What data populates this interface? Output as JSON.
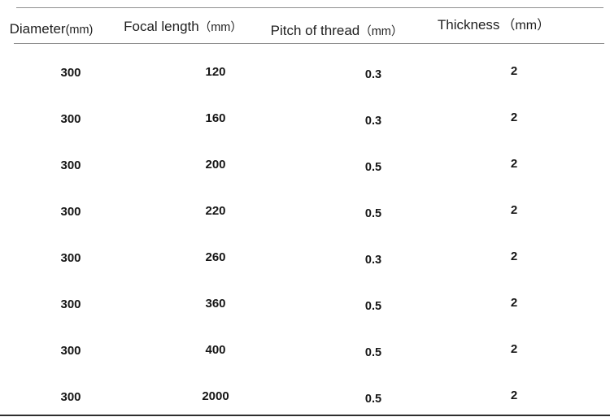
{
  "chart_data": {
    "type": "table",
    "columns": [
      {
        "label": "Diameter",
        "unit": "(mm)"
      },
      {
        "label": "Focal length",
        "unit": "（mm）"
      },
      {
        "label": "Pitch of thread",
        "unit": "（mm）"
      },
      {
        "label": "Thickness",
        "unit": "（mm）"
      }
    ],
    "rows": [
      {
        "diameter": "300",
        "focal_length": "120",
        "pitch_of_thread": "0.3",
        "thickness": "2"
      },
      {
        "diameter": "300",
        "focal_length": "160",
        "pitch_of_thread": "0.3",
        "thickness": "2"
      },
      {
        "diameter": "300",
        "focal_length": "200",
        "pitch_of_thread": "0.5",
        "thickness": "2"
      },
      {
        "diameter": "300",
        "focal_length": "220",
        "pitch_of_thread": "0.5",
        "thickness": "2"
      },
      {
        "diameter": "300",
        "focal_length": "260",
        "pitch_of_thread": "0.3",
        "thickness": "2"
      },
      {
        "diameter": "300",
        "focal_length": "360",
        "pitch_of_thread": "0.5",
        "thickness": "2"
      },
      {
        "diameter": "300",
        "focal_length": "400",
        "pitch_of_thread": "0.5",
        "thickness": "2"
      },
      {
        "diameter": "300",
        "focal_length": "2000",
        "pitch_of_thread": "0.5",
        "thickness": "2"
      }
    ]
  }
}
